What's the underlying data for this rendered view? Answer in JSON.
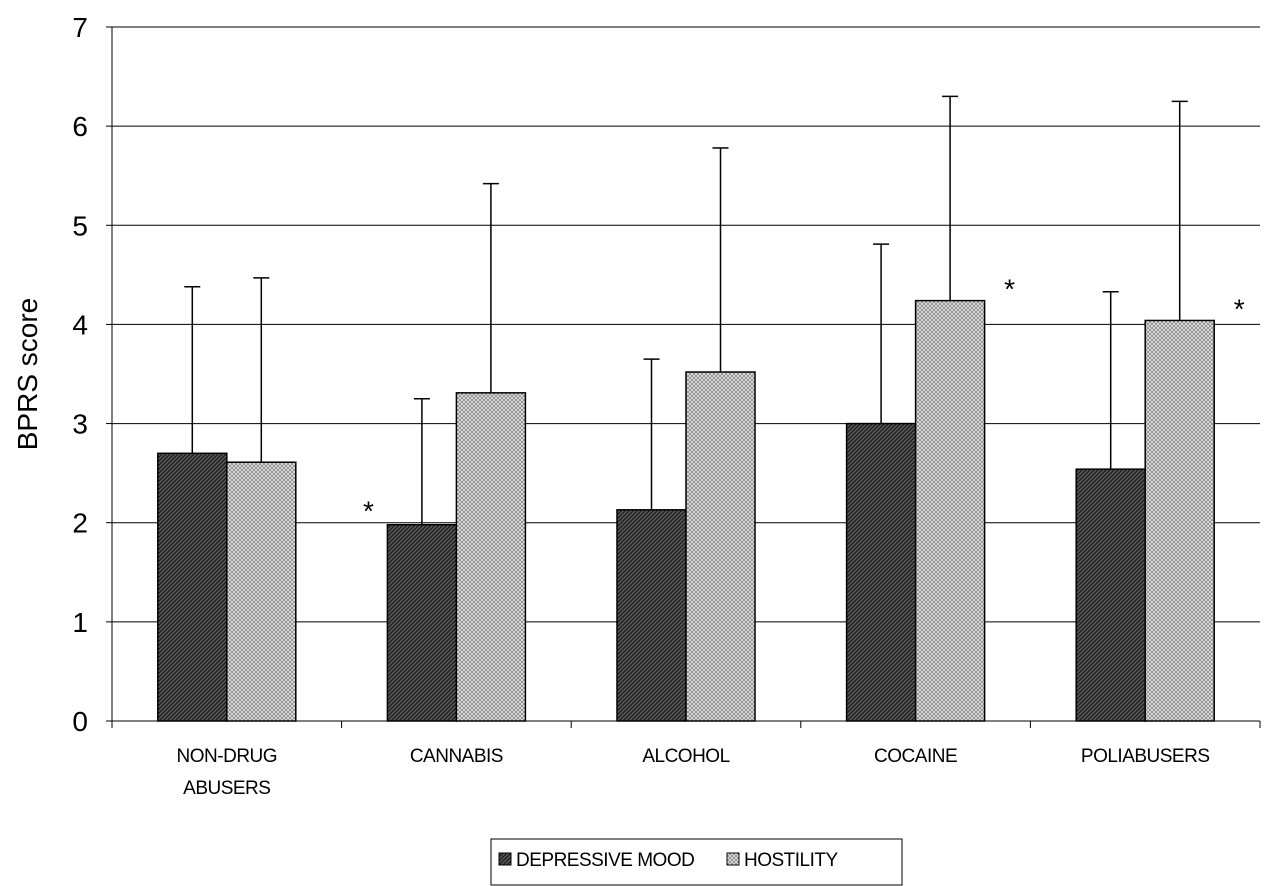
{
  "chart_data": {
    "type": "bar",
    "title": "",
    "ylabel": "BPRS score",
    "xlabel": "",
    "ylim": [
      0,
      7
    ],
    "yticks": [
      0,
      1,
      2,
      3,
      4,
      5,
      6,
      7
    ],
    "grid": true,
    "legend_position": "bottom",
    "categories": [
      [
        "NON-DRUG",
        "ABUSERS"
      ],
      [
        "CANNABIS"
      ],
      [
        "ALCOHOL"
      ],
      [
        "COCAINE"
      ],
      [
        "POLIABUSERS"
      ]
    ],
    "series": [
      {
        "name": "DEPRESSIVE MOOD",
        "values": [
          2.7,
          1.98,
          2.13,
          3.0,
          2.54
        ],
        "error_upper": [
          4.38,
          3.25,
          3.65,
          4.81,
          4.33
        ],
        "significant": [
          false,
          true,
          false,
          false,
          false
        ],
        "pattern": "diagonal-hatch",
        "color": "#303030"
      },
      {
        "name": "HOSTILITY",
        "values": [
          2.61,
          3.31,
          3.52,
          4.24,
          4.04
        ],
        "error_upper": [
          4.47,
          5.42,
          5.78,
          6.3,
          6.25
        ],
        "significant": [
          false,
          false,
          false,
          true,
          true
        ],
        "pattern": "crosshatch",
        "color": "#b0b0b0"
      }
    ],
    "significance_marker": "*"
  }
}
